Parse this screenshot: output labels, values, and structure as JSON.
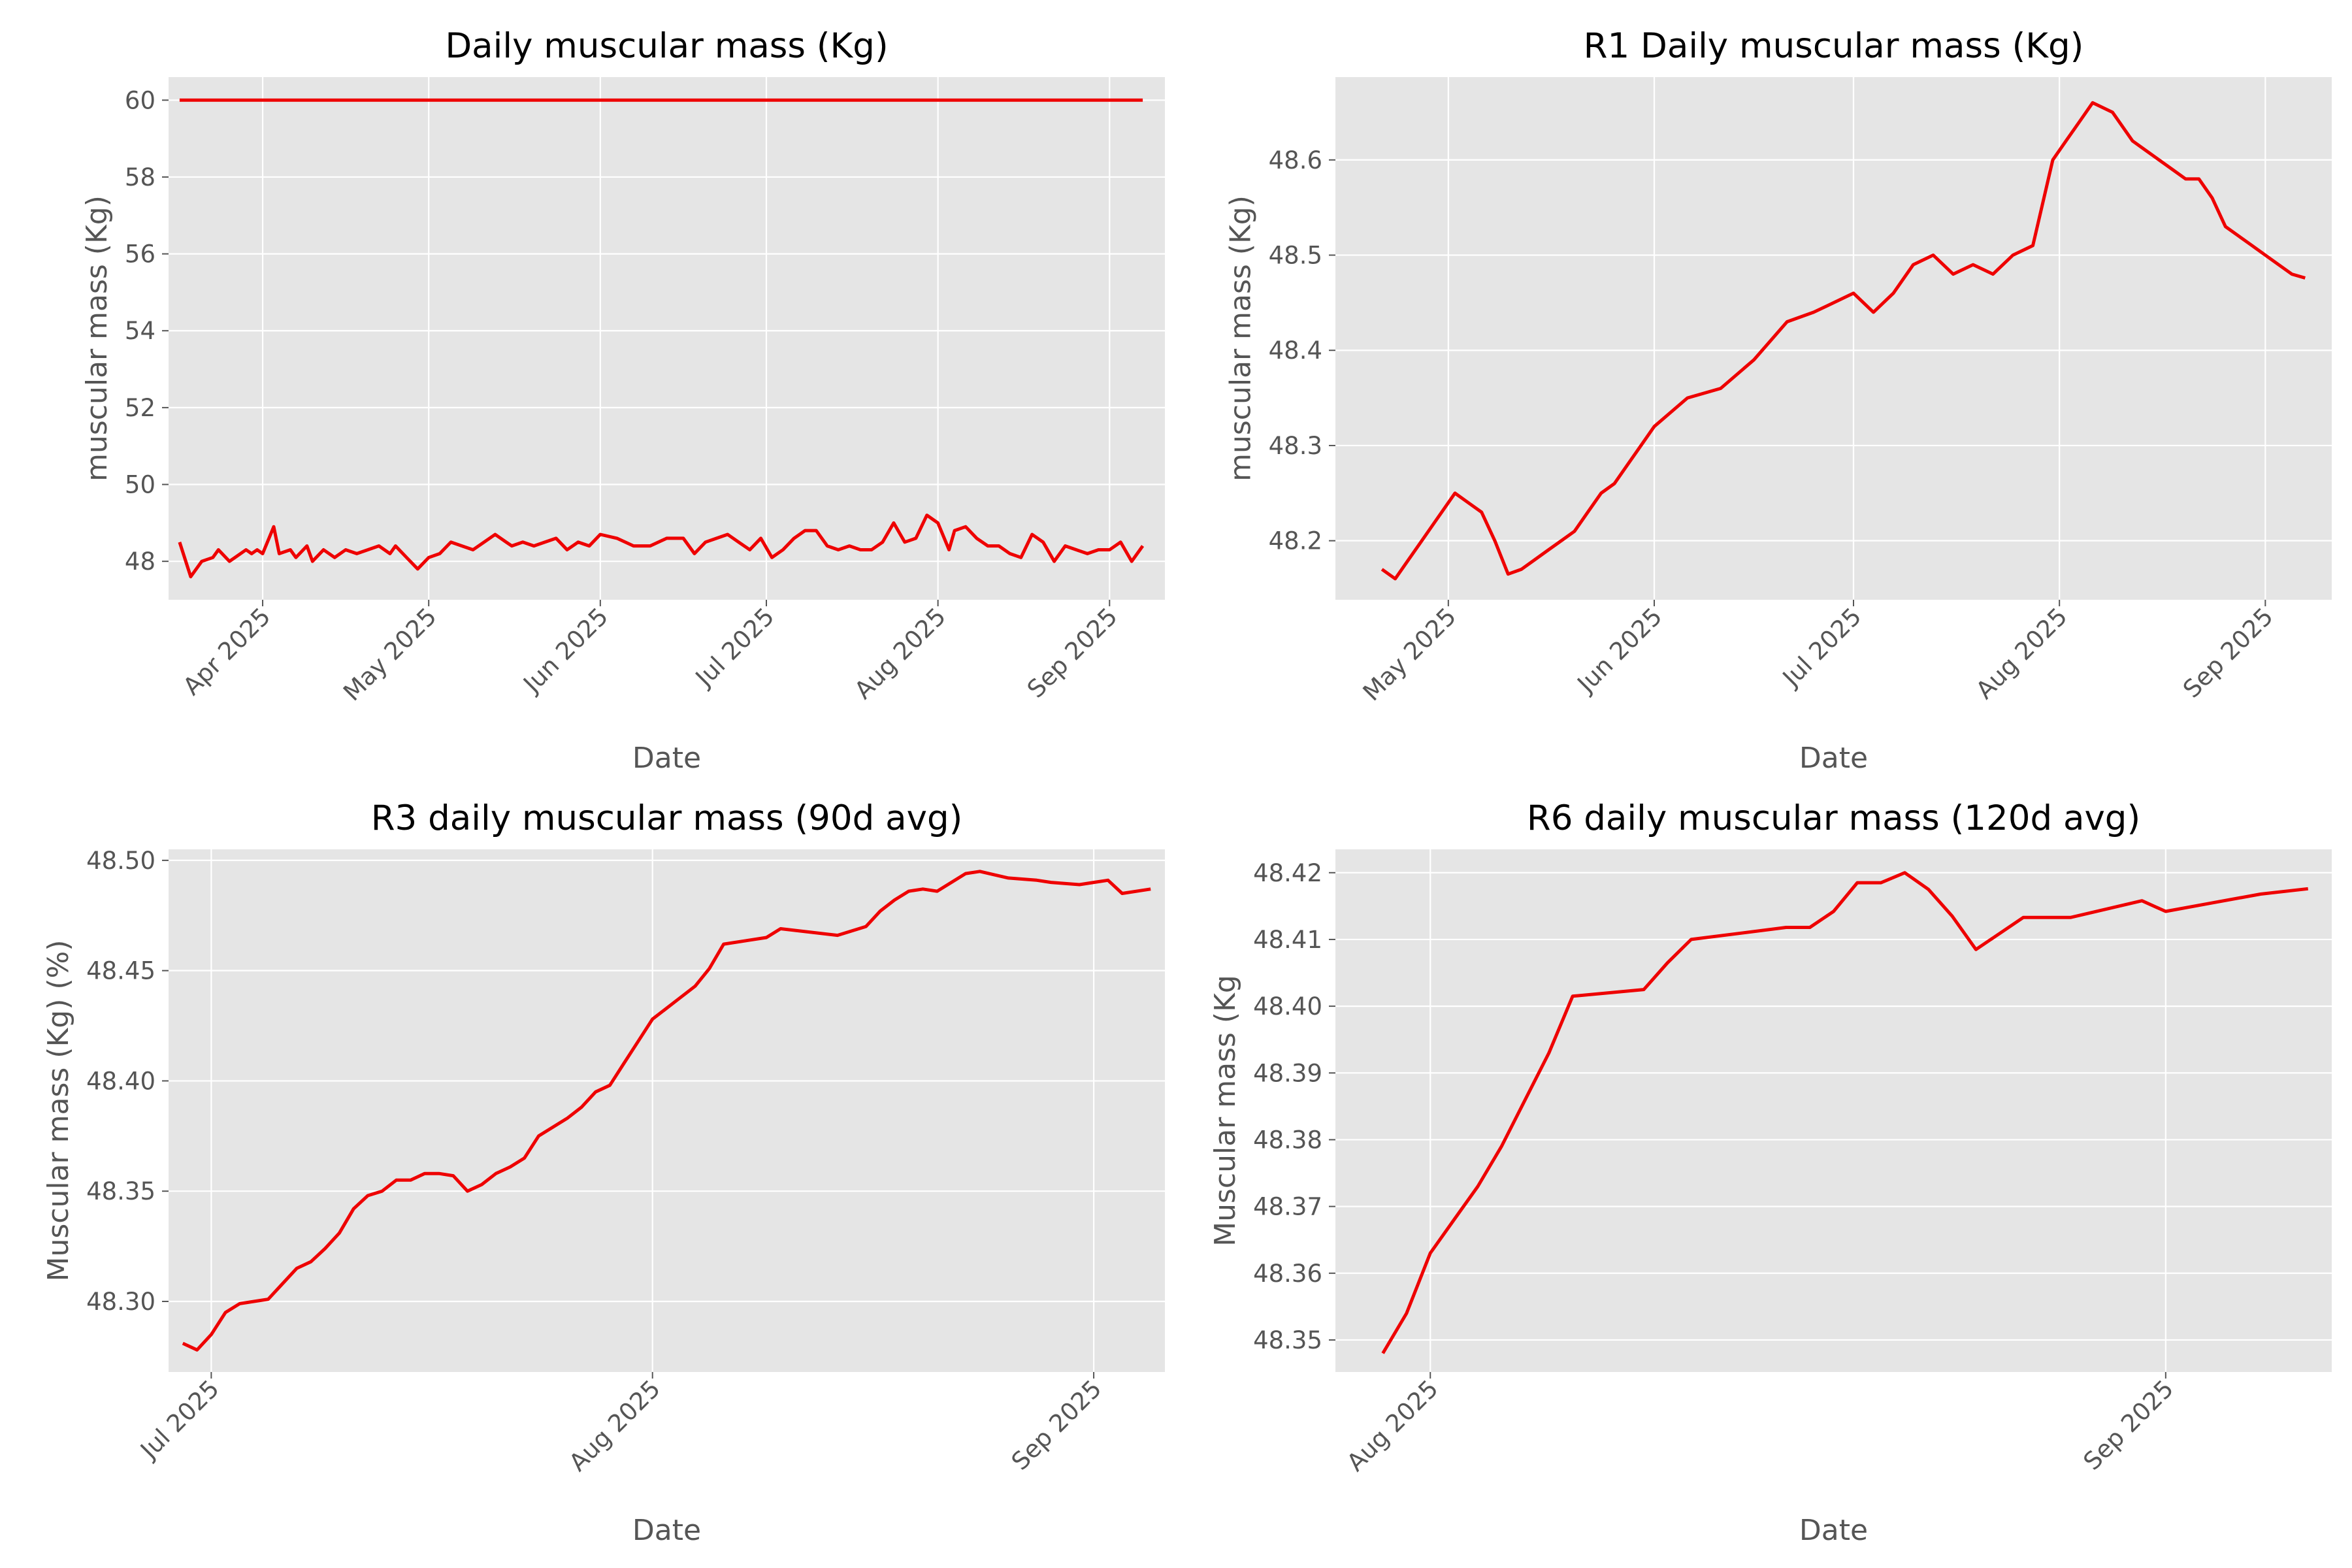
{
  "colors": {
    "line": "#ee0000",
    "panel_bg": "#e5e5e5",
    "grid": "#ffffff",
    "text": "#555555",
    "title": "#000000"
  },
  "chart_data": [
    {
      "type": "line",
      "title": "Daily muscular mass (Kg)",
      "xlabel": "Date",
      "ylabel": "muscular mass (Kg)",
      "xlim": [
        "2025-03-15",
        "2025-09-11"
      ],
      "ylim": [
        47.0,
        60.6
      ],
      "grid": true,
      "xticks": [
        {
          "date": "2025-04-01",
          "label": "Apr 2025"
        },
        {
          "date": "2025-05-01",
          "label": "May 2025"
        },
        {
          "date": "2025-06-01",
          "label": "Jun 2025"
        },
        {
          "date": "2025-07-01",
          "label": "Jul 2025"
        },
        {
          "date": "2025-08-01",
          "label": "Aug 2025"
        },
        {
          "date": "2025-09-01",
          "label": "Sep 2025"
        }
      ],
      "yticks": [
        48,
        50,
        52,
        54,
        56,
        58,
        60
      ],
      "y_tick_format": 0,
      "series": [
        {
          "x": [
            "2025-03-17",
            "2025-09-07"
          ],
          "y": [
            60.0,
            60.0
          ]
        },
        {
          "x": [
            "2025-03-17",
            "2025-03-19",
            "2025-03-21",
            "2025-03-23",
            "2025-03-24",
            "2025-03-26",
            "2025-03-27",
            "2025-03-29",
            "2025-03-30",
            "2025-03-31",
            "2025-04-01",
            "2025-04-03",
            "2025-04-04",
            "2025-04-06",
            "2025-04-07",
            "2025-04-09",
            "2025-04-10",
            "2025-04-12",
            "2025-04-14",
            "2025-04-16",
            "2025-04-18",
            "2025-04-20",
            "2025-04-22",
            "2025-04-24",
            "2025-04-25",
            "2025-04-27",
            "2025-04-29",
            "2025-05-01",
            "2025-05-03",
            "2025-05-05",
            "2025-05-07",
            "2025-05-09",
            "2025-05-11",
            "2025-05-13",
            "2025-05-15",
            "2025-05-16",
            "2025-05-18",
            "2025-05-20",
            "2025-05-22",
            "2025-05-24",
            "2025-05-26",
            "2025-05-28",
            "2025-05-30",
            "2025-06-01",
            "2025-06-04",
            "2025-06-07",
            "2025-06-10",
            "2025-06-13",
            "2025-06-16",
            "2025-06-18",
            "2025-06-20",
            "2025-06-22",
            "2025-06-24",
            "2025-06-26",
            "2025-06-28",
            "2025-06-30",
            "2025-07-02",
            "2025-07-04",
            "2025-07-06",
            "2025-07-08",
            "2025-07-10",
            "2025-07-12",
            "2025-07-14",
            "2025-07-16",
            "2025-07-18",
            "2025-07-20",
            "2025-07-22",
            "2025-07-24",
            "2025-07-26",
            "2025-07-28",
            "2025-07-30",
            "2025-08-01",
            "2025-08-03",
            "2025-08-04",
            "2025-08-06",
            "2025-08-08",
            "2025-08-10",
            "2025-08-12",
            "2025-08-14",
            "2025-08-16",
            "2025-08-18",
            "2025-08-20",
            "2025-08-22",
            "2025-08-24",
            "2025-08-26",
            "2025-08-28",
            "2025-08-30",
            "2025-09-01",
            "2025-09-03",
            "2025-09-05",
            "2025-09-07"
          ],
          "y": [
            48.5,
            47.6,
            48.0,
            48.1,
            48.3,
            48.0,
            48.1,
            48.3,
            48.2,
            48.3,
            48.2,
            48.9,
            48.2,
            48.3,
            48.1,
            48.4,
            48.0,
            48.3,
            48.1,
            48.3,
            48.2,
            48.3,
            48.4,
            48.2,
            48.4,
            48.1,
            47.8,
            48.1,
            48.2,
            48.5,
            48.4,
            48.3,
            48.5,
            48.7,
            48.5,
            48.4,
            48.5,
            48.4,
            48.5,
            48.6,
            48.3,
            48.5,
            48.4,
            48.7,
            48.6,
            48.4,
            48.4,
            48.6,
            48.6,
            48.2,
            48.5,
            48.6,
            48.7,
            48.5,
            48.3,
            48.6,
            48.1,
            48.3,
            48.6,
            48.8,
            48.8,
            48.4,
            48.3,
            48.4,
            48.3,
            48.3,
            48.5,
            49.0,
            48.5,
            48.6,
            49.2,
            49.0,
            48.3,
            48.8,
            48.9,
            48.6,
            48.4,
            48.4,
            48.2,
            48.1,
            48.7,
            48.5,
            48.0,
            48.4,
            48.3,
            48.2,
            48.3,
            48.3,
            48.5,
            48.0,
            48.4
          ]
        }
      ]
    },
    {
      "type": "line",
      "title": "R1 Daily muscular mass (Kg)",
      "xlabel": "Date",
      "ylabel": "muscular mass (Kg)",
      "xlim": [
        "2025-04-14",
        "2025-09-11"
      ],
      "ylim": [
        48.138,
        48.687
      ],
      "grid": true,
      "xticks": [
        {
          "date": "2025-05-01",
          "label": "May 2025"
        },
        {
          "date": "2025-06-01",
          "label": "Jun 2025"
        },
        {
          "date": "2025-07-01",
          "label": "Jul 2025"
        },
        {
          "date": "2025-08-01",
          "label": "Aug 2025"
        },
        {
          "date": "2025-09-01",
          "label": "Sep 2025"
        }
      ],
      "yticks": [
        48.2,
        48.3,
        48.4,
        48.5,
        48.6
      ],
      "y_tick_format": 1,
      "series": [
        {
          "x": [
            "2025-04-21",
            "2025-04-23",
            "2025-04-25",
            "2025-04-27",
            "2025-04-29",
            "2025-04-30",
            "2025-05-02",
            "2025-05-04",
            "2025-05-06",
            "2025-05-08",
            "2025-05-10",
            "2025-05-12",
            "2025-05-14",
            "2025-05-16",
            "2025-05-18",
            "2025-05-20",
            "2025-05-22",
            "2025-05-24",
            "2025-05-26",
            "2025-05-28",
            "2025-05-30",
            "2025-06-01",
            "2025-06-06",
            "2025-06-11",
            "2025-06-16",
            "2025-06-21",
            "2025-06-25",
            "2025-06-28",
            "2025-07-01",
            "2025-07-04",
            "2025-07-07",
            "2025-07-10",
            "2025-07-13",
            "2025-07-16",
            "2025-07-19",
            "2025-07-22",
            "2025-07-25",
            "2025-07-28",
            "2025-07-31",
            "2025-08-02",
            "2025-08-04",
            "2025-08-06",
            "2025-08-09",
            "2025-08-12",
            "2025-08-14",
            "2025-08-16",
            "2025-08-18",
            "2025-08-20",
            "2025-08-22",
            "2025-08-24",
            "2025-08-26",
            "2025-08-28",
            "2025-08-30",
            "2025-09-01",
            "2025-09-03",
            "2025-09-05",
            "2025-09-07"
          ],
          "y": [
            48.17,
            48.16,
            48.18,
            48.2,
            48.22,
            48.23,
            48.25,
            48.24,
            48.23,
            48.2,
            48.165,
            48.17,
            48.18,
            48.19,
            48.2,
            48.21,
            48.23,
            48.25,
            48.26,
            48.28,
            48.3,
            48.32,
            48.35,
            48.36,
            48.39,
            48.43,
            48.44,
            48.45,
            48.46,
            48.44,
            48.46,
            48.49,
            48.5,
            48.48,
            48.49,
            48.48,
            48.5,
            48.51,
            48.6,
            48.62,
            48.64,
            48.66,
            48.65,
            48.62,
            48.61,
            48.6,
            48.59,
            48.58,
            48.58,
            48.56,
            48.53,
            48.52,
            48.51,
            48.5,
            48.49,
            48.48,
            48.476
          ]
        }
      ]
    },
    {
      "type": "line",
      "title": "R3 daily muscular mass (90d avg)",
      "xlabel": "Date",
      "ylabel": "Muscular mass (Kg) (%)",
      "xlim": [
        "2025-06-28",
        "2025-09-06"
      ],
      "ylim": [
        48.268,
        48.505
      ],
      "grid": true,
      "xticks": [
        {
          "date": "2025-07-01",
          "label": "Jul 2025"
        },
        {
          "date": "2025-08-01",
          "label": "Aug 2025"
        },
        {
          "date": "2025-09-01",
          "label": "Sep 2025"
        }
      ],
      "yticks": [
        48.3,
        48.35,
        48.4,
        48.45,
        48.5
      ],
      "y_tick_format": 2,
      "series": [
        {
          "x": [
            "2025-06-29",
            "2025-06-30",
            "2025-07-01",
            "2025-07-02",
            "2025-07-03",
            "2025-07-05",
            "2025-07-06",
            "2025-07-07",
            "2025-07-08",
            "2025-07-09",
            "2025-07-10",
            "2025-07-11",
            "2025-07-12",
            "2025-07-13",
            "2025-07-14",
            "2025-07-15",
            "2025-07-16",
            "2025-07-17",
            "2025-07-18",
            "2025-07-19",
            "2025-07-20",
            "2025-07-21",
            "2025-07-22",
            "2025-07-23",
            "2025-07-24",
            "2025-07-25",
            "2025-07-26",
            "2025-07-27",
            "2025-07-28",
            "2025-07-29",
            "2025-07-30",
            "2025-07-31",
            "2025-08-01",
            "2025-08-03",
            "2025-08-04",
            "2025-08-05",
            "2025-08-06",
            "2025-08-09",
            "2025-08-10",
            "2025-08-14",
            "2025-08-16",
            "2025-08-17",
            "2025-08-18",
            "2025-08-19",
            "2025-08-20",
            "2025-08-21",
            "2025-08-22",
            "2025-08-23",
            "2025-08-24",
            "2025-08-26",
            "2025-08-28",
            "2025-08-29",
            "2025-08-31",
            "2025-09-01",
            "2025-09-02",
            "2025-09-03",
            "2025-09-05"
          ],
          "y": [
            48.281,
            48.278,
            48.285,
            48.295,
            48.299,
            48.301,
            48.308,
            48.315,
            48.318,
            48.324,
            48.331,
            48.342,
            48.348,
            48.35,
            48.355,
            48.355,
            48.358,
            48.358,
            48.357,
            48.35,
            48.353,
            48.358,
            48.361,
            48.365,
            48.375,
            48.379,
            48.383,
            48.388,
            48.395,
            48.398,
            48.408,
            48.418,
            48.428,
            48.438,
            48.443,
            48.451,
            48.462,
            48.465,
            48.469,
            48.466,
            48.47,
            48.477,
            48.482,
            48.486,
            48.487,
            48.486,
            48.49,
            48.494,
            48.495,
            48.492,
            48.491,
            48.49,
            48.489,
            48.49,
            48.491,
            48.485,
            48.487
          ]
        }
      ]
    },
    {
      "type": "line",
      "title": "R6 daily muscular mass  (120d avg)",
      "xlabel": "Date",
      "ylabel": "Muscular mass (Kg",
      "xlim": [
        "2025-07-28",
        "2025-09-08"
      ],
      "ylim": [
        48.3452,
        48.4235
      ],
      "grid": true,
      "xticks": [
        {
          "date": "2025-08-01",
          "label": "Aug 2025"
        },
        {
          "date": "2025-09-01",
          "label": "Sep 2025"
        }
      ],
      "yticks": [
        48.35,
        48.36,
        48.37,
        48.38,
        48.39,
        48.4,
        48.41,
        48.42
      ],
      "y_tick_format": 2,
      "series": [
        {
          "x": [
            "2025-07-30",
            "2025-07-31",
            "2025-08-01",
            "2025-08-02",
            "2025-08-03",
            "2025-08-04",
            "2025-08-05",
            "2025-08-06",
            "2025-08-07",
            "2025-08-10",
            "2025-08-11",
            "2025-08-12",
            "2025-08-16",
            "2025-08-17",
            "2025-08-18",
            "2025-08-19",
            "2025-08-20",
            "2025-08-21",
            "2025-08-22",
            "2025-08-23",
            "2025-08-24",
            "2025-08-26",
            "2025-08-28",
            "2025-08-31",
            "2025-09-01",
            "2025-09-03",
            "2025-09-05",
            "2025-09-07"
          ],
          "y": [
            48.348,
            48.354,
            48.363,
            48.368,
            48.373,
            48.379,
            48.386,
            48.393,
            48.4015,
            48.4025,
            48.4065,
            48.41,
            48.4118,
            48.4118,
            48.4142,
            48.4185,
            48.4185,
            48.42,
            48.4175,
            48.4135,
            48.4085,
            48.4133,
            48.4133,
            48.4158,
            48.4142,
            48.4155,
            48.4168,
            48.4176
          ]
        }
      ]
    }
  ]
}
